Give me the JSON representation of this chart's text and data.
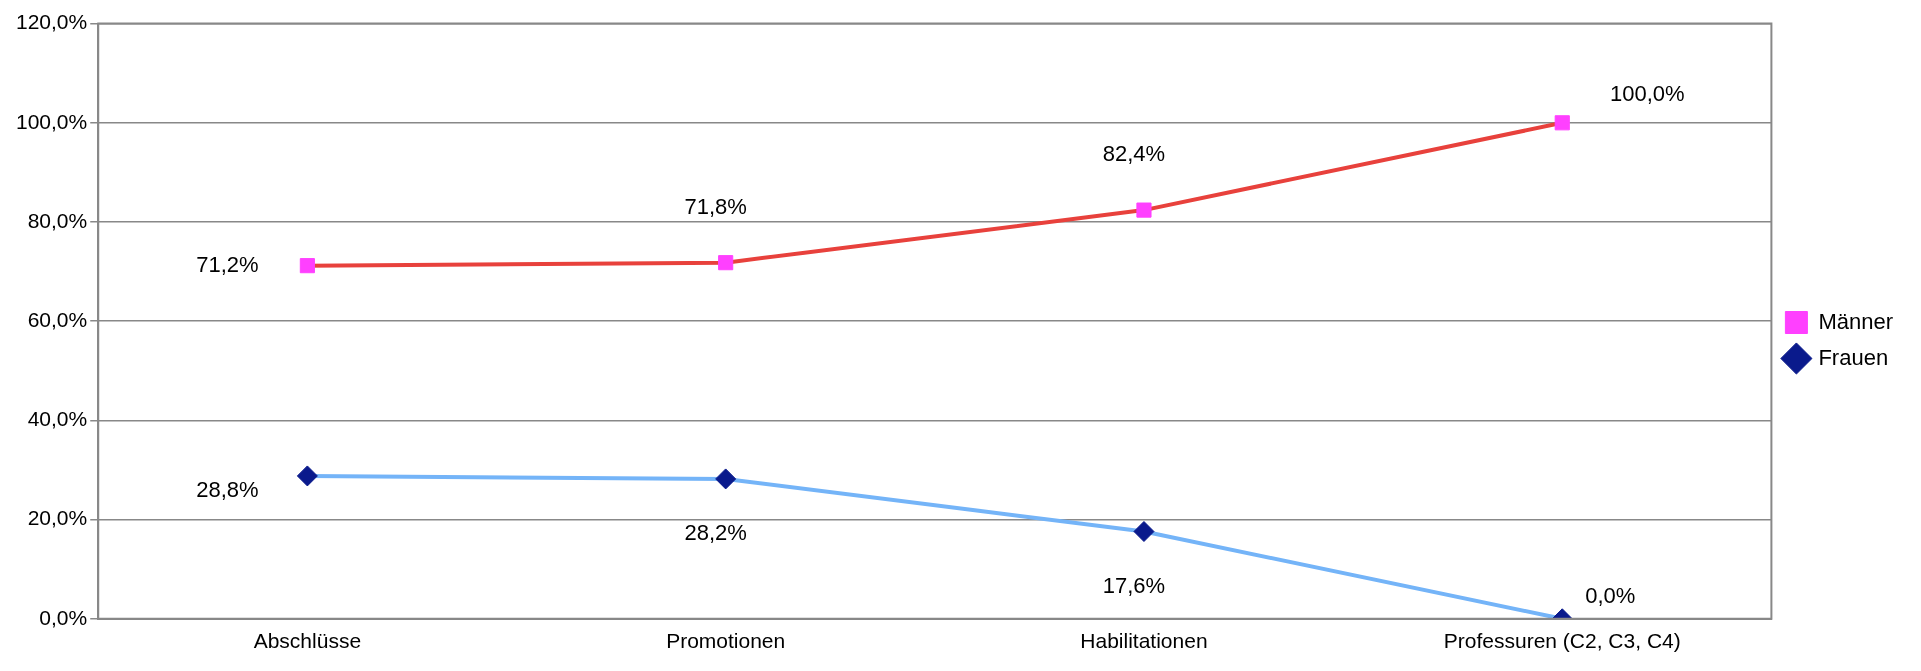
{
  "chart_data": {
    "type": "line",
    "categories": [
      "Abschlüsse",
      "Promotionen",
      "Habilitationen",
      "Professuren (C2, C3, C4)"
    ],
    "series": [
      {
        "name": "Männer",
        "color": "#e8413c",
        "colors": [
          "#ff40ff",
          "#ff40ff",
          "#ff40ff",
          "#ff40ff"
        ],
        "marker": "square",
        "values": [
          71.2,
          71.8,
          82.4,
          100
        ],
        "value_labels": [
          "71,2%",
          "71,8%",
          "82,4%",
          "100,0%"
        ]
      },
      {
        "name": "Frauen",
        "color": "#74b4f8",
        "colors": [
          "#0a1a8c",
          "#0a1a8c",
          "#0a1a8c",
          "#0a1a8c"
        ],
        "marker": "diamond",
        "values": [
          28.8,
          28.2,
          17.6,
          0
        ],
        "value_labels": [
          "28,8%",
          "28,2%",
          "17,6%",
          "0,0%"
        ]
      }
    ],
    "ylim": [
      0,
      120
    ],
    "yticks": [
      {
        "value": 0,
        "label": "0,0%"
      },
      {
        "value": 20,
        "label": "20,0%"
      },
      {
        "value": 40,
        "label": "40,0%"
      },
      {
        "value": 60,
        "label": "60,0%"
      },
      {
        "value": 80,
        "label": "80,0%"
      },
      {
        "value": 100,
        "label": "100,0%"
      },
      {
        "value": 120,
        "label": "120,0%"
      }
    ],
    "grid": "y",
    "legend": "right",
    "line_style": "solid"
  }
}
